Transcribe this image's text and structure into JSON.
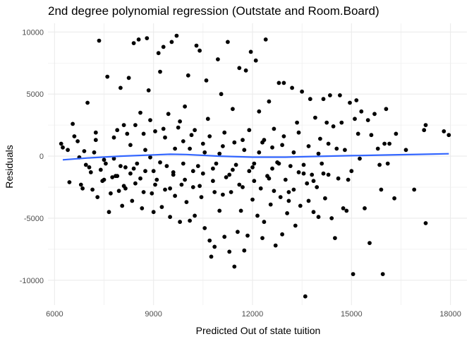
{
  "chart_data": {
    "type": "scatter",
    "title": "2nd degree polynomial regression (Outstate and Room.Board)",
    "xlabel": "Predicted Out of state tuition",
    "ylabel": "Residuals",
    "xlim": [
      5800,
      18500
    ],
    "ylim": [
      -12000,
      10700
    ],
    "xticks": [
      6000,
      9000,
      12000,
      15000,
      18000
    ],
    "xtick_labels": [
      "6000",
      "9000",
      "12000",
      "15000",
      "18000"
    ],
    "yticks": [
      -10000,
      -5000,
      0,
      5000,
      10000
    ],
    "ytick_labels": [
      "-10000",
      "-5000",
      "0",
      "5000",
      "10000"
    ],
    "grid": true,
    "legend": "none",
    "colors": {
      "points": "#000000",
      "fit_line": "#3366ff",
      "grid": "#ebebeb"
    },
    "points": [
      [
        6200,
        1000
      ],
      [
        6250,
        700
      ],
      [
        6400,
        500
      ],
      [
        6450,
        -2100
      ],
      [
        6600,
        1600
      ],
      [
        6550,
        2600
      ],
      [
        6700,
        1200
      ],
      [
        6750,
        -100
      ],
      [
        6800,
        -2300
      ],
      [
        6850,
        -2600
      ],
      [
        6900,
        400
      ],
      [
        6950,
        -700
      ],
      [
        7000,
        4300
      ],
      [
        7050,
        -900
      ],
      [
        7100,
        -1300
      ],
      [
        7150,
        -2700
      ],
      [
        7200,
        300
      ],
      [
        7250,
        1900
      ],
      [
        7300,
        -3300
      ],
      [
        7350,
        9300
      ],
      [
        7400,
        -1100
      ],
      [
        7450,
        -2000
      ],
      [
        7500,
        -300
      ],
      [
        7550,
        -600
      ],
      [
        7600,
        6400
      ],
      [
        7650,
        -4500
      ],
      [
        7700,
        -3000
      ],
      [
        7750,
        -1700
      ],
      [
        7800,
        -200
      ],
      [
        7850,
        -1600
      ],
      [
        7900,
        2100
      ],
      [
        7950,
        -2800
      ],
      [
        8000,
        5500
      ],
      [
        8050,
        -4000
      ],
      [
        8100,
        -2400
      ],
      [
        8150,
        -900
      ],
      [
        8200,
        1800
      ],
      [
        8250,
        6300
      ],
      [
        8300,
        -1400
      ],
      [
        8350,
        -3600
      ],
      [
        8400,
        9100
      ],
      [
        8450,
        -2200
      ],
      [
        8500,
        -600
      ],
      [
        8550,
        9400
      ],
      [
        8600,
        3500
      ],
      [
        8650,
        -4200
      ],
      [
        8700,
        -2900
      ],
      [
        8750,
        -1200
      ],
      [
        8800,
        9500
      ],
      [
        8850,
        5300
      ],
      [
        8900,
        -100
      ],
      [
        8950,
        -3000
      ],
      [
        9000,
        -4500
      ],
      [
        9050,
        2000
      ],
      [
        9100,
        -1900
      ],
      [
        9150,
        8300
      ],
      [
        9200,
        6800
      ],
      [
        9250,
        -4100
      ],
      [
        9300,
        8800
      ],
      [
        9350,
        -2700
      ],
      [
        9400,
        -800
      ],
      [
        9450,
        3400
      ],
      [
        9500,
        -4900
      ],
      [
        9550,
        9200
      ],
      [
        9600,
        -1500
      ],
      [
        9650,
        -3200
      ],
      [
        9700,
        9700
      ],
      [
        9750,
        2300
      ],
      [
        9800,
        -5300
      ],
      [
        9850,
        -2300
      ],
      [
        9900,
        -600
      ],
      [
        9950,
        4000
      ],
      [
        10000,
        -3700
      ],
      [
        10050,
        6500
      ],
      [
        10100,
        -5200
      ],
      [
        10150,
        1700
      ],
      [
        10200,
        -2500
      ],
      [
        10250,
        -4800
      ],
      [
        10300,
        8900
      ],
      [
        10350,
        -800
      ],
      [
        10400,
        8500
      ],
      [
        10450,
        -3300
      ],
      [
        10500,
        -1400
      ],
      [
        10550,
        -5800
      ],
      [
        10600,
        6100
      ],
      [
        10650,
        3000
      ],
      [
        10700,
        -6800
      ],
      [
        10750,
        -8100
      ],
      [
        10800,
        -2000
      ],
      [
        10850,
        -7300
      ],
      [
        10900,
        -600
      ],
      [
        10950,
        7800
      ],
      [
        11000,
        -4400
      ],
      [
        11050,
        5000
      ],
      [
        11100,
        -3100
      ],
      [
        11150,
        -6500
      ],
      [
        11200,
        -1700
      ],
      [
        11250,
        9200
      ],
      [
        11300,
        -7700
      ],
      [
        11350,
        -2900
      ],
      [
        11400,
        3800
      ],
      [
        11450,
        -8900
      ],
      [
        11500,
        -700
      ],
      [
        11550,
        -6100
      ],
      [
        11600,
        7100
      ],
      [
        11650,
        -4400
      ],
      [
        11700,
        -2500
      ],
      [
        11750,
        -7600
      ],
      [
        11800,
        6900
      ],
      [
        11850,
        -6400
      ],
      [
        11900,
        -1200
      ],
      [
        11950,
        8400
      ],
      [
        12000,
        -3500
      ],
      [
        12050,
        -600
      ],
      [
        12100,
        7700
      ],
      [
        12150,
        -4800
      ],
      [
        12200,
        3600
      ],
      [
        12250,
        -2600
      ],
      [
        12300,
        -6600
      ],
      [
        12350,
        -5300
      ],
      [
        12400,
        9400
      ],
      [
        12450,
        -1600
      ],
      [
        12500,
        4400
      ],
      [
        12550,
        -3900
      ],
      [
        12600,
        700
      ],
      [
        12650,
        -2800
      ],
      [
        12700,
        -7200
      ],
      [
        12750,
        -500
      ],
      [
        12800,
        5900
      ],
      [
        12850,
        -3300
      ],
      [
        12900,
        -6300
      ],
      [
        12950,
        5900
      ],
      [
        13000,
        -1900
      ],
      [
        13050,
        -4600
      ],
      [
        13100,
        -3600
      ],
      [
        13150,
        -800
      ],
      [
        13200,
        5500
      ],
      [
        13250,
        -2700
      ],
      [
        13300,
        -5600
      ],
      [
        13350,
        2700
      ],
      [
        13400,
        -1300
      ],
      [
        13450,
        -4000
      ],
      [
        13500,
        5200
      ],
      [
        13550,
        -700
      ],
      [
        13600,
        -11300
      ],
      [
        13650,
        -2200
      ],
      [
        13700,
        -3600
      ],
      [
        13750,
        4600
      ],
      [
        13800,
        -1500
      ],
      [
        13850,
        -4500
      ],
      [
        13900,
        3100
      ],
      [
        13950,
        -2500
      ],
      [
        14000,
        -4900
      ],
      [
        14050,
        1400
      ],
      [
        14100,
        -600
      ],
      [
        14150,
        4600
      ],
      [
        14200,
        -3400
      ],
      [
        14250,
        2700
      ],
      [
        14300,
        -1500
      ],
      [
        14350,
        4900
      ],
      [
        14400,
        -5000
      ],
      [
        14450,
        2400
      ],
      [
        14500,
        -6600
      ],
      [
        14550,
        600
      ],
      [
        14600,
        -1800
      ],
      [
        14650,
        4900
      ],
      [
        14700,
        2700
      ],
      [
        14750,
        -4200
      ],
      [
        14800,
        500
      ],
      [
        14850,
        -4400
      ],
      [
        14900,
        -1900
      ],
      [
        14950,
        4300
      ],
      [
        15000,
        -1200
      ],
      [
        15050,
        -9500
      ],
      [
        15100,
        3000
      ],
      [
        15150,
        4500
      ],
      [
        15200,
        1800
      ],
      [
        15250,
        -200
      ],
      [
        15300,
        3600
      ],
      [
        15400,
        -4200
      ],
      [
        15500,
        2900
      ],
      [
        15550,
        -7000
      ],
      [
        15600,
        1700
      ],
      [
        15700,
        3400
      ],
      [
        15800,
        600
      ],
      [
        15850,
        -700
      ],
      [
        15900,
        -2700
      ],
      [
        15950,
        -9500
      ],
      [
        16000,
        1000
      ],
      [
        16050,
        3800
      ],
      [
        16100,
        -600
      ],
      [
        16150,
        1000
      ],
      [
        16300,
        -3400
      ],
      [
        16350,
        1800
      ],
      [
        16650,
        500
      ],
      [
        16900,
        -2700
      ],
      [
        17200,
        2100
      ],
      [
        17250,
        2500
      ],
      [
        17250,
        -5400
      ],
      [
        17800,
        2000
      ],
      [
        17950,
        1700
      ],
      [
        7250,
        1300
      ],
      [
        7500,
        -1900
      ],
      [
        7800,
        1500
      ],
      [
        8000,
        -800
      ],
      [
        8150,
        -2600
      ],
      [
        8300,
        900
      ],
      [
        8450,
        2500
      ],
      [
        8600,
        -1800
      ],
      [
        8750,
        500
      ],
      [
        8900,
        2900
      ],
      [
        9050,
        -2300
      ],
      [
        9200,
        -500
      ],
      [
        9350,
        1500
      ],
      [
        9500,
        -2600
      ],
      [
        9650,
        600
      ],
      [
        9800,
        2800
      ],
      [
        9950,
        -1900
      ],
      [
        10100,
        600
      ],
      [
        10250,
        2100
      ],
      [
        10400,
        -2400
      ],
      [
        10550,
        300
      ],
      [
        10700,
        1600
      ],
      [
        10850,
        -2900
      ],
      [
        11000,
        200
      ],
      [
        11150,
        1900
      ],
      [
        11300,
        -1500
      ],
      [
        11450,
        1100
      ],
      [
        11600,
        -2300
      ],
      [
        11750,
        500
      ],
      [
        11900,
        2100
      ],
      [
        12050,
        -2000
      ],
      [
        12200,
        300
      ],
      [
        12350,
        1300
      ],
      [
        12500,
        -1800
      ],
      [
        12650,
        2200
      ],
      [
        12800,
        -600
      ],
      [
        12950,
        1600
      ],
      [
        13100,
        -2900
      ],
      [
        13250,
        300
      ],
      [
        13400,
        1900
      ],
      [
        13550,
        -1400
      ],
      [
        13700,
        800
      ],
      [
        13850,
        -2000
      ],
      [
        14000,
        200
      ],
      [
        14150,
        -1400
      ],
      [
        14300,
        1000
      ],
      [
        7900,
        -1600
      ],
      [
        8100,
        2500
      ],
      [
        8400,
        -1000
      ],
      [
        8700,
        1800
      ],
      [
        9000,
        -1200
      ],
      [
        9300,
        2200
      ],
      [
        9600,
        -1300
      ],
      [
        9900,
        1200
      ],
      [
        10200,
        -1200
      ],
      [
        10500,
        1000
      ],
      [
        10800,
        -1000
      ],
      [
        11100,
        800
      ],
      [
        11400,
        -1100
      ],
      [
        11700,
        1300
      ],
      [
        12000,
        -900
      ],
      [
        12300,
        1100
      ],
      [
        12600,
        -1000
      ],
      [
        12900,
        900
      ]
    ],
    "fit_line": [
      [
        6250,
        -300
      ],
      [
        7000,
        -150
      ],
      [
        8000,
        0
      ],
      [
        9000,
        100
      ],
      [
        9500,
        150
      ],
      [
        10000,
        130
      ],
      [
        11000,
        0
      ],
      [
        12000,
        -80
      ],
      [
        13000,
        -80
      ],
      [
        14000,
        -20
      ],
      [
        15000,
        40
      ],
      [
        16000,
        90
      ],
      [
        17000,
        140
      ],
      [
        17950,
        190
      ]
    ]
  }
}
